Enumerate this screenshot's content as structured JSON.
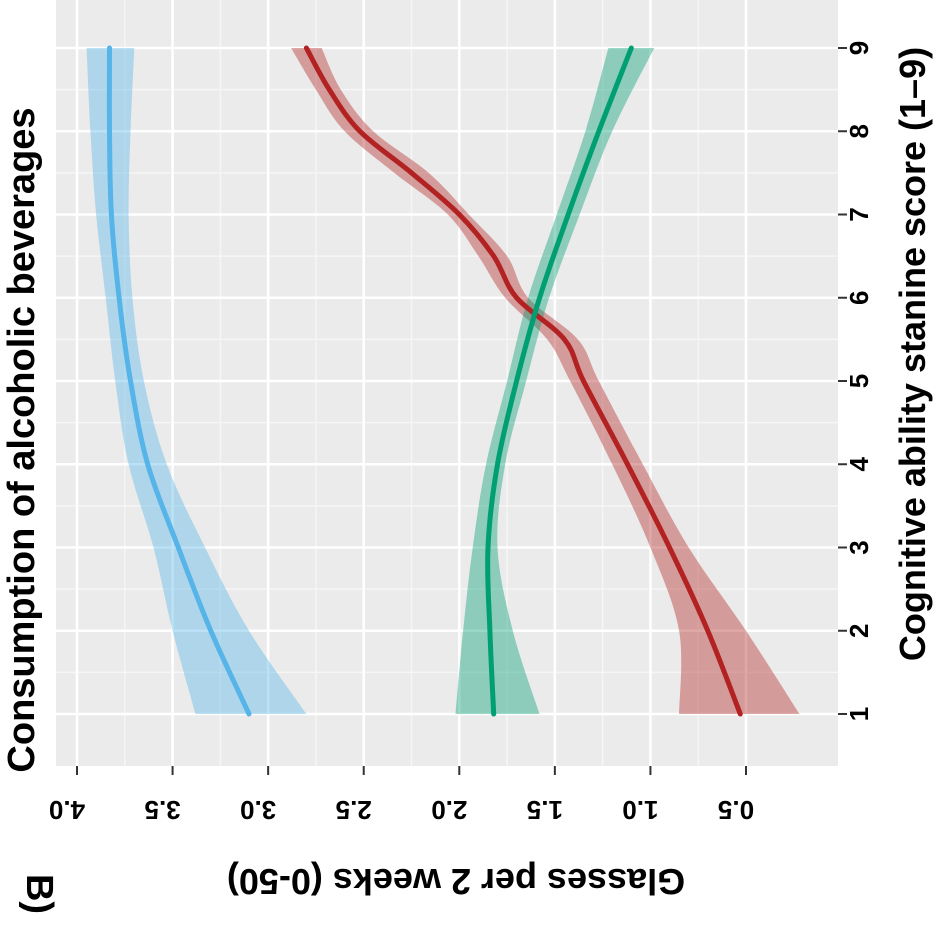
{
  "panel_label": "B)",
  "chart_data": {
    "type": "line",
    "orientation": "rotated 90 degrees clockwise",
    "title": "Consumption of alcoholic beverages",
    "xlabel": "Cognitive ability stanine score (1–9)",
    "ylabel": "Glasses per 2 weeks (0-50)",
    "xlim": [
      0.7,
      9.3
    ],
    "ylim": [
      0.4,
      4.2
    ],
    "x_ticks": [
      "1",
      "2",
      "3",
      "4",
      "5",
      "6",
      "7",
      "8",
      "9"
    ],
    "y_ticks": [
      "0.5",
      "1.0",
      "1.5",
      "2.0",
      "2.5",
      "3.0",
      "3.5",
      "4.0"
    ],
    "grid": true,
    "legend": "none",
    "series": [
      {
        "color": "#56B4E9",
        "x": [
          1,
          2,
          3,
          4,
          5,
          6,
          7,
          8,
          9
        ],
        "y": [
          3.1,
          3.3,
          3.47,
          3.63,
          3.72,
          3.78,
          3.82,
          3.83,
          3.83
        ],
        "lower": [
          2.8,
          3.1,
          3.33,
          3.53,
          3.65,
          3.71,
          3.73,
          3.72,
          3.7
        ],
        "upper": [
          3.38,
          3.5,
          3.6,
          3.73,
          3.8,
          3.85,
          3.9,
          3.93,
          3.95
        ]
      },
      {
        "color": "#B22222",
        "x": [
          1,
          2,
          3,
          4,
          5,
          5.5,
          6,
          6.5,
          7,
          7.5,
          8,
          8.5,
          9
        ],
        "y": [
          0.53,
          0.7,
          0.9,
          1.12,
          1.35,
          1.45,
          1.7,
          1.82,
          2.0,
          2.25,
          2.52,
          2.68,
          2.8
        ],
        "lower": [
          0.22,
          0.5,
          0.8,
          1.04,
          1.27,
          1.38,
          1.64,
          1.75,
          1.95,
          2.16,
          2.45,
          2.62,
          2.72
        ],
        "upper": [
          0.85,
          0.85,
          1.0,
          1.2,
          1.42,
          1.54,
          1.76,
          1.9,
          2.06,
          2.34,
          2.6,
          2.75,
          2.88
        ]
      },
      {
        "color": "#009E73",
        "x": [
          1,
          2,
          3,
          4,
          5,
          6,
          7,
          8,
          9
        ],
        "y": [
          1.82,
          1.84,
          1.85,
          1.8,
          1.7,
          1.58,
          1.43,
          1.27,
          1.1
        ],
        "lower": [
          1.58,
          1.72,
          1.8,
          1.76,
          1.65,
          1.53,
          1.37,
          1.2,
          0.98
        ],
        "upper": [
          2.02,
          1.98,
          1.93,
          1.86,
          1.75,
          1.64,
          1.49,
          1.34,
          1.22
        ]
      }
    ]
  }
}
